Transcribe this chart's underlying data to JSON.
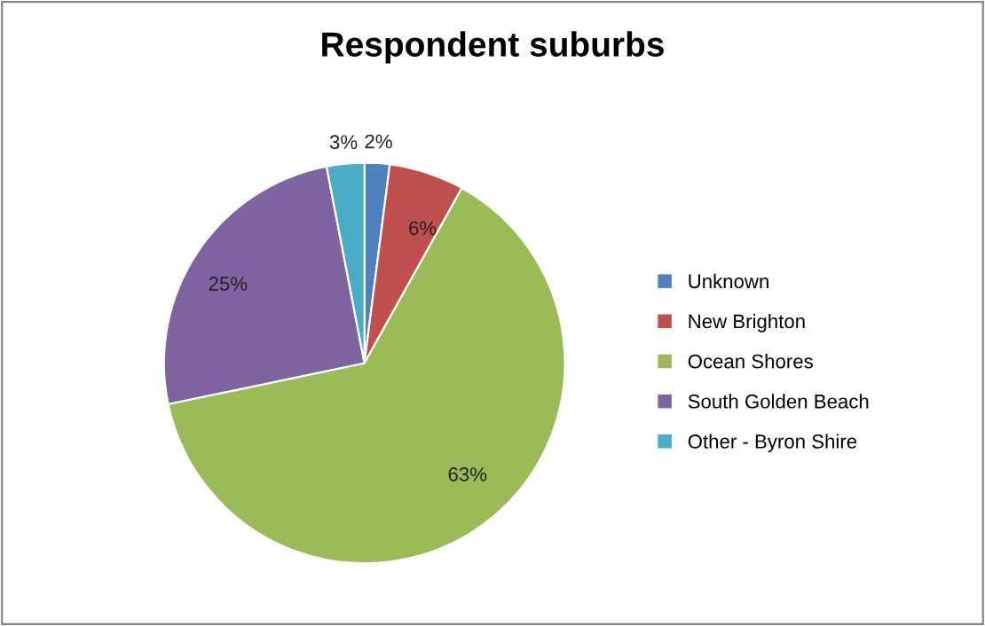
{
  "chart_data": {
    "type": "pie",
    "title": "Respondent suburbs",
    "categories": [
      "Unknown",
      "New Brighton",
      "Ocean Shores",
      "South Golden Beach",
      "Other - Byron Shire"
    ],
    "values": [
      2,
      6,
      63,
      25,
      3
    ],
    "value_labels": [
      "2%",
      "6%",
      "63%",
      "25%",
      "3%"
    ],
    "colors": [
      "#4f81bd",
      "#c0504d",
      "#9bbb59",
      "#8064a2",
      "#4bacc6"
    ],
    "legend": "right"
  }
}
